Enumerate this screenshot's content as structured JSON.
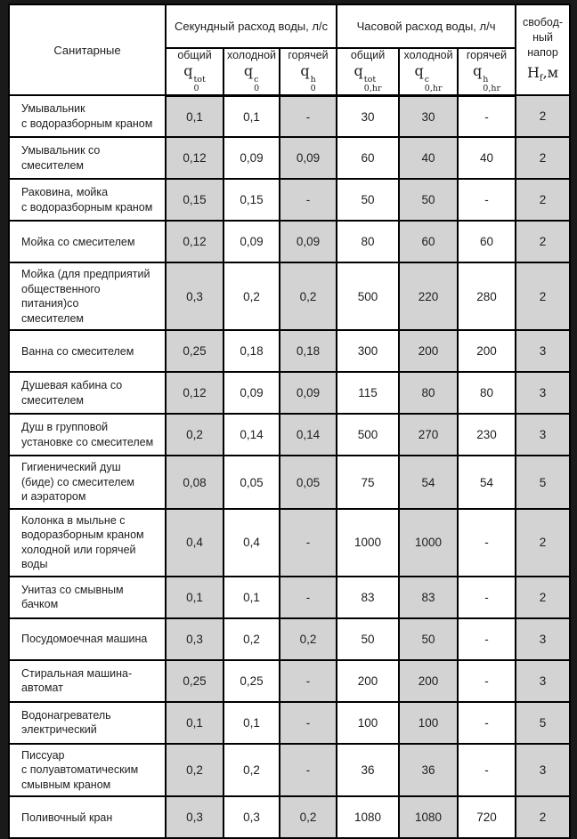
{
  "colors": {
    "frame": "#1a1a1a",
    "grid_line": "#000000",
    "cell_shade": "#d3d3d3",
    "cell_white": "#ffffff",
    "text": "#1e1e1e"
  },
  "table": {
    "header": {
      "fixtures_label": "Санитарные",
      "seconds_group": "Секундный расход воды, л/с",
      "hourly_group": "Часовой расход воды, л/ч",
      "free_head_lines": [
        "свобод-",
        "ный",
        "напор"
      ],
      "free_head_symbol": {
        "base": "H",
        "sub": "f",
        "after": ",м"
      },
      "subcolumns": [
        {
          "label": "общий",
          "base": "q",
          "sup": "tot",
          "sub": "0"
        },
        {
          "label": "холодной",
          "base": "q",
          "sup": "c",
          "sub": "0"
        },
        {
          "label": "горячей",
          "base": "q",
          "sup": "h",
          "sub": "0"
        },
        {
          "label": "общий",
          "base": "q",
          "sup": "tot",
          "sub": "0,hr"
        },
        {
          "label": "холодной",
          "base": "q",
          "sup": "c",
          "sub": "0,hr"
        },
        {
          "label": "горячей",
          "base": "q",
          "sup": "h",
          "sub": "0,hr"
        }
      ]
    },
    "rows": [
      {
        "name": "Умывальник\nс водоразборным краном",
        "values": [
          "0,1",
          "0,1",
          "-",
          "30",
          "30",
          "-",
          "2"
        ]
      },
      {
        "name": "Умывальник со смесителем",
        "values": [
          "0,12",
          "0,09",
          "0,09",
          "60",
          "40",
          "40",
          "2"
        ]
      },
      {
        "name": "Раковина, мойка\nс водоразборным краном",
        "values": [
          "0,15",
          "0,15",
          "-",
          "50",
          "50",
          "-",
          "2"
        ]
      },
      {
        "name": "Мойка со смесителем",
        "values": [
          "0,12",
          "0,09",
          "0,09",
          "80",
          "60",
          "60",
          "2"
        ]
      },
      {
        "name": "Мойка (для предприятий\nобщественного питания)со\nсмесителем",
        "values": [
          "0,3",
          "0,2",
          "0,2",
          "500",
          "220",
          "280",
          "2"
        ]
      },
      {
        "name": "Ванна со смесителем",
        "values": [
          "0,25",
          "0,18",
          "0,18",
          "300",
          "200",
          "200",
          "3"
        ]
      },
      {
        "name": "Душевая кабина со\nсмесителем",
        "values": [
          "0,12",
          "0,09",
          "0,09",
          "115",
          "80",
          "80",
          "3"
        ]
      },
      {
        "name": "Душ в групповой\nустановке со смесителем",
        "values": [
          "0,2",
          "0,14",
          "0,14",
          "500",
          "270",
          "230",
          "3"
        ]
      },
      {
        "name": "Гигиенический душ\n(биде) со смесителем\nи аэратором",
        "values": [
          "0,08",
          "0,05",
          "0,05",
          "75",
          "54",
          "54",
          "5"
        ]
      },
      {
        "name": "Колонка в мыльне с\nводоразборным краном\nхолодной или горячей воды",
        "values": [
          "0,4",
          "0,4",
          "-",
          "1000",
          "1000",
          "-",
          "2"
        ]
      },
      {
        "name": "Унитаз со смывным бачком",
        "values": [
          "0,1",
          "0,1",
          "-",
          "83",
          "83",
          "-",
          "2"
        ]
      },
      {
        "name": "Посудомоечная машина",
        "values": [
          "0,3",
          "0,2",
          "0,2",
          "50",
          "50",
          "-",
          "3"
        ]
      },
      {
        "name": "Стиральная машина-\nавтомат",
        "values": [
          "0,25",
          "0,25",
          "-",
          "200",
          "200",
          "-",
          "3"
        ]
      },
      {
        "name": "Водонагреватель\nэлектрический",
        "values": [
          "0,1",
          "0,1",
          "-",
          "100",
          "100",
          "-",
          "5"
        ]
      },
      {
        "name": "Писсуар\nс полуавтоматическим\nсмывным краном",
        "values": [
          "0,2",
          "0,2",
          "-",
          "36",
          "36",
          "-",
          "3"
        ]
      },
      {
        "name": "Поливочный кран",
        "values": [
          "0,3",
          "0,3",
          "0,2",
          "1080",
          "1080",
          "720",
          "2"
        ]
      }
    ]
  }
}
